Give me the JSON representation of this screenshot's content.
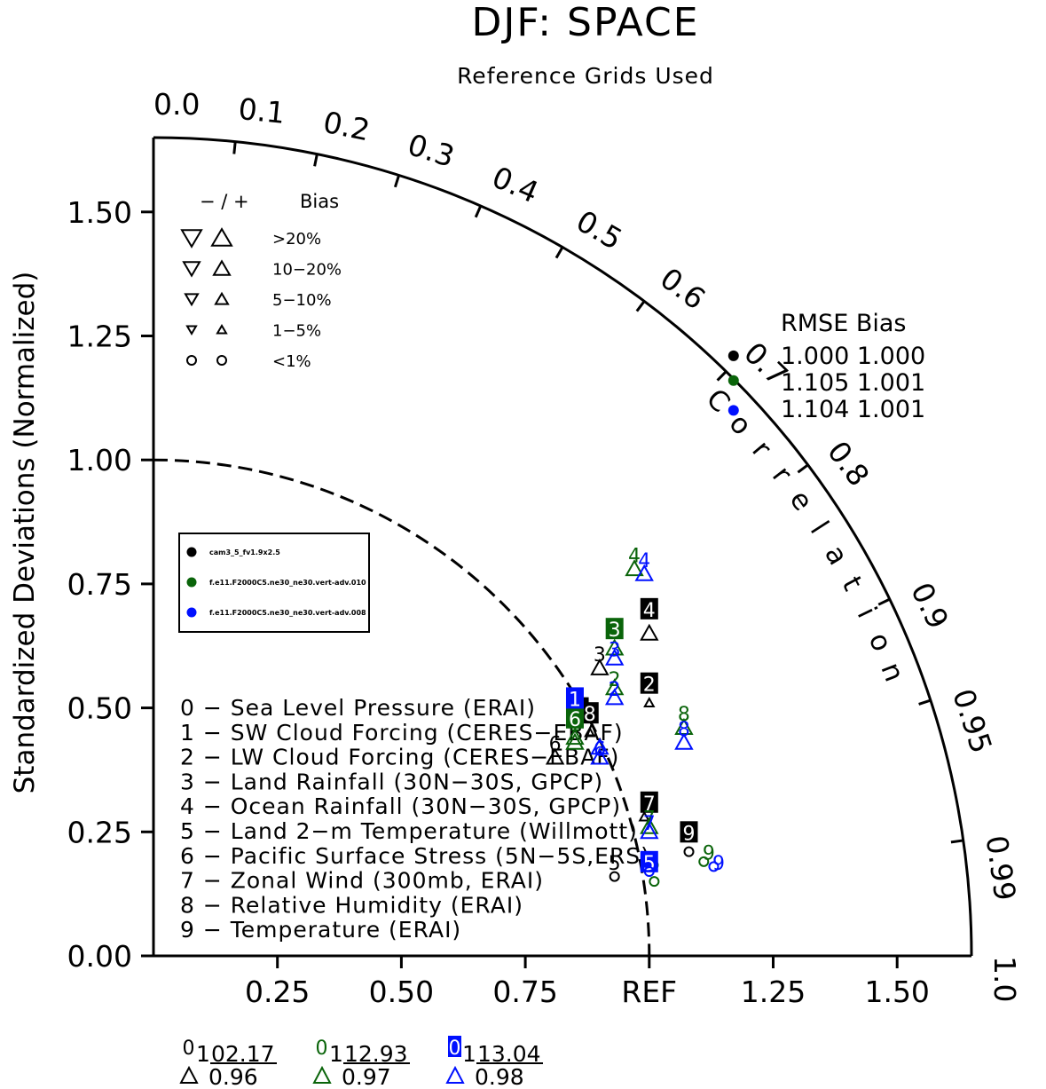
{
  "title": "DJF: SPACE",
  "subtitle": "Reference Grids Used",
  "colors": {
    "black": "#000000",
    "green": "#0a640a",
    "blue": "#0010ff"
  },
  "chart_data": {
    "type": "scatter",
    "kind": "taylor-diagram",
    "title": "DJF: SPACE",
    "subtitle": "Reference Grids Used",
    "ylabel": "Standardized Deviations (Normalized)",
    "arc_label": "Correlation",
    "ylim": [
      0,
      1.65
    ],
    "xlim": [
      0,
      1.65
    ],
    "y_ticks": [
      "0.00",
      "0.25",
      "0.50",
      "0.75",
      "1.00",
      "1.25",
      "1.50"
    ],
    "x_ticks": [
      "0.25",
      "0.50",
      "0.75",
      "REF",
      "1.25",
      "1.50"
    ],
    "corr_ticks": [
      "0.0",
      "0.1",
      "0.2",
      "0.3",
      "0.4",
      "0.5",
      "0.6",
      "0.7",
      "0.8",
      "0.9",
      "0.95",
      "0.99",
      "1.0"
    ],
    "bias_legend": {
      "header": [
        "− / +",
        "Bias"
      ],
      "rows": [
        ">20%",
        "10−20%",
        "5−10%",
        "1−5%",
        "<1%"
      ]
    },
    "rmse_legend": {
      "header": "RMSE  Bias",
      "rows": [
        {
          "series": 0,
          "text": "1.000 1.000"
        },
        {
          "series": 1,
          "text": "1.105 1.001"
        },
        {
          "series": 2,
          "text": "1.104 1.001"
        }
      ]
    },
    "series": [
      {
        "name": "cam3_5_fv1.9x2.5",
        "color": "#000000"
      },
      {
        "name": "f.e11.F2000C5.ne30_ne30.vert-adv.010",
        "color": "#0a640a"
      },
      {
        "name": "f.e11.F2000C5.ne30_ne30.vert-adv.008",
        "color": "#0010ff"
      }
    ],
    "variables": [
      "0 − Sea Level Pressure (ERAI)",
      "1 − SW Cloud Forcing (CERES−EBAF)",
      "2 − LW Cloud Forcing (CERES−EBAF)",
      "3 − Land Rainfall (30N−30S, GPCP)",
      "4 − Ocean Rainfall (30N−30S, GPCP)",
      "5 − Land 2−m Temperature (Willmott)",
      "6 − Pacific Surface Stress (5N−5S,ERS)",
      "7 − Zonal Wind (300mb, ERAI)",
      "8 − Relative Humidity (ERAI)",
      "9 − Temperature (ERAI)"
    ],
    "points": [
      {
        "series": 0,
        "var": "1",
        "x": 0.86,
        "y": 0.5,
        "style": "box",
        "marker": "circle"
      },
      {
        "series": 0,
        "var": "2",
        "x": 1.0,
        "y": 0.55,
        "style": "box",
        "marker": "tri-up-sm",
        "mx": 1.0,
        "my": 0.51
      },
      {
        "series": 0,
        "var": "3",
        "x": 0.9,
        "y": 0.61,
        "style": "plain",
        "marker": "tri-up",
        "mx": 0.9,
        "my": 0.58
      },
      {
        "series": 0,
        "var": "4",
        "x": 1.0,
        "y": 0.7,
        "style": "box",
        "marker": "tri-up",
        "mx": 1.0,
        "my": 0.65
      },
      {
        "series": 0,
        "var": "5",
        "x": 0.93,
        "y": 0.19,
        "style": "plain",
        "marker": "circle",
        "mx": 0.93,
        "my": 0.16
      },
      {
        "series": 0,
        "var": "6",
        "x": 0.81,
        "y": 0.43,
        "style": "plain",
        "marker": "tri-up",
        "mx": 0.81,
        "my": 0.4
      },
      {
        "series": 0,
        "var": "7",
        "x": 1.0,
        "y": 0.31,
        "style": "box",
        "marker": "tri-up-sm",
        "mx": 0.99,
        "my": 0.28
      },
      {
        "series": 0,
        "var": "8",
        "x": 0.88,
        "y": 0.49,
        "style": "box",
        "marker": "tri-up-sm",
        "mx": 0.88,
        "my": 0.45
      },
      {
        "series": 0,
        "var": "9",
        "x": 1.08,
        "y": 0.25,
        "style": "box",
        "marker": "circle",
        "mx": 1.08,
        "my": 0.21
      },
      {
        "series": 1,
        "var": "1",
        "x": 0.85,
        "y": 0.47,
        "style": "plain",
        "marker": "tri-up",
        "mx": 0.85,
        "my": 0.43
      },
      {
        "series": 1,
        "var": "2",
        "x": 0.93,
        "y": 0.56,
        "style": "plain",
        "marker": "tri-up",
        "mx": 0.93,
        "my": 0.54
      },
      {
        "series": 1,
        "var": "3",
        "x": 0.93,
        "y": 0.66,
        "style": "box",
        "marker": "tri-up",
        "mx": 0.93,
        "my": 0.62
      },
      {
        "series": 1,
        "var": "4",
        "x": 0.97,
        "y": 0.81,
        "style": "plain",
        "marker": "tri-up",
        "mx": 0.97,
        "my": 0.78
      },
      {
        "series": 1,
        "var": "5",
        "x": 1.01,
        "y": 0.19,
        "style": "plain",
        "marker": "circle",
        "mx": 1.01,
        "my": 0.15
      },
      {
        "series": 1,
        "var": "6",
        "x": 0.85,
        "y": 0.48,
        "style": "box",
        "marker": "tri-up",
        "mx": 0.85,
        "my": 0.44
      },
      {
        "series": 1,
        "var": "7",
        "x": 1.0,
        "y": 0.28,
        "style": "plain",
        "marker": "tri-up",
        "mx": 1.0,
        "my": 0.26
      },
      {
        "series": 1,
        "var": "8",
        "x": 1.07,
        "y": 0.49,
        "style": "plain",
        "marker": "tri-up",
        "mx": 1.07,
        "my": 0.46
      },
      {
        "series": 1,
        "var": "9",
        "x": 1.12,
        "y": 0.21,
        "style": "plain",
        "marker": "circle",
        "mx": 1.11,
        "my": 0.19
      },
      {
        "series": 2,
        "var": "1",
        "x": 0.85,
        "y": 0.52,
        "style": "box",
        "marker": "tri-up",
        "mx": 0.9,
        "my": 0.42
      },
      {
        "series": 2,
        "var": "2",
        "x": 0.93,
        "y": 0.54,
        "style": "plain",
        "marker": "tri-up",
        "mx": 0.93,
        "my": 0.52
      },
      {
        "series": 2,
        "var": "3",
        "x": 0.93,
        "y": 0.62,
        "style": "plain",
        "marker": "tri-up",
        "mx": 0.93,
        "my": 0.6
      },
      {
        "series": 2,
        "var": "4",
        "x": 0.99,
        "y": 0.8,
        "style": "plain",
        "marker": "tri-up",
        "mx": 0.99,
        "my": 0.77
      },
      {
        "series": 2,
        "var": "5",
        "x": 1.0,
        "y": 0.19,
        "style": "box",
        "marker": "circle",
        "mx": 1.0,
        "my": 0.17
      },
      {
        "series": 2,
        "var": "6",
        "x": 0.9,
        "y": 0.42,
        "style": "plain",
        "marker": "tri-up",
        "mx": 0.9,
        "my": 0.4
      },
      {
        "series": 2,
        "var": "7",
        "x": 1.0,
        "y": 0.27,
        "style": "plain",
        "marker": "tri-up",
        "mx": 1.0,
        "my": 0.25
      },
      {
        "series": 2,
        "var": "8",
        "x": 1.07,
        "y": 0.46,
        "style": "plain",
        "marker": "tri-up",
        "mx": 1.07,
        "my": 0.43
      },
      {
        "series": 2,
        "var": "9",
        "x": 1.14,
        "y": 0.19,
        "style": "plain",
        "marker": "circle",
        "mx": 1.13,
        "my": 0.18
      }
    ],
    "ref_points": [
      {
        "series": 0,
        "x": 1.17,
        "y": 1.21
      },
      {
        "series": 1,
        "x": 1.17,
        "y": 1.16
      },
      {
        "series": 2,
        "x": 1.17,
        "y": 1.1
      }
    ],
    "bottom_stats": [
      {
        "series": 0,
        "idx": "0",
        "n": "1",
        "v1": "02.17",
        "v2": "0.96"
      },
      {
        "series": 1,
        "idx": "0",
        "n": "1",
        "v1": "12.93",
        "v2": "0.97"
      },
      {
        "series": 2,
        "idx": "0",
        "n": "1",
        "v1": "13.04",
        "v2": "0.98"
      }
    ]
  }
}
